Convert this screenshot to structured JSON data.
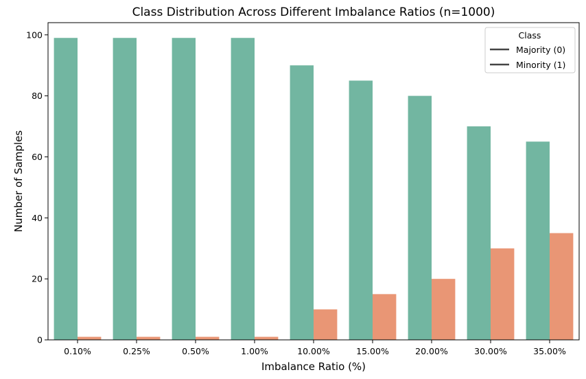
{
  "chart_data": {
    "type": "bar",
    "title": "Class Distribution Across Different Imbalance Ratios (n=1000)",
    "xlabel": "Imbalance Ratio (%)",
    "ylabel": "Number of Samples",
    "categories": [
      "0.10%",
      "0.25%",
      "0.50%",
      "1.00%",
      "10.00%",
      "15.00%",
      "20.00%",
      "30.00%",
      "35.00%"
    ],
    "series": [
      {
        "name": "Majority (0)",
        "color": "#72b6a1",
        "values": [
          99,
          99,
          99,
          99,
          90,
          85,
          80,
          70,
          65
        ]
      },
      {
        "name": "Minority (1)",
        "color": "#e99675",
        "values": [
          1,
          1,
          1,
          1,
          10,
          15,
          20,
          30,
          35
        ]
      }
    ],
    "ylim": [
      0,
      104
    ],
    "yticks": [
      0,
      20,
      40,
      60,
      80,
      100
    ],
    "grid": false,
    "legend": {
      "title": "Class",
      "placement": "top-right",
      "line_color": "#444444"
    }
  }
}
